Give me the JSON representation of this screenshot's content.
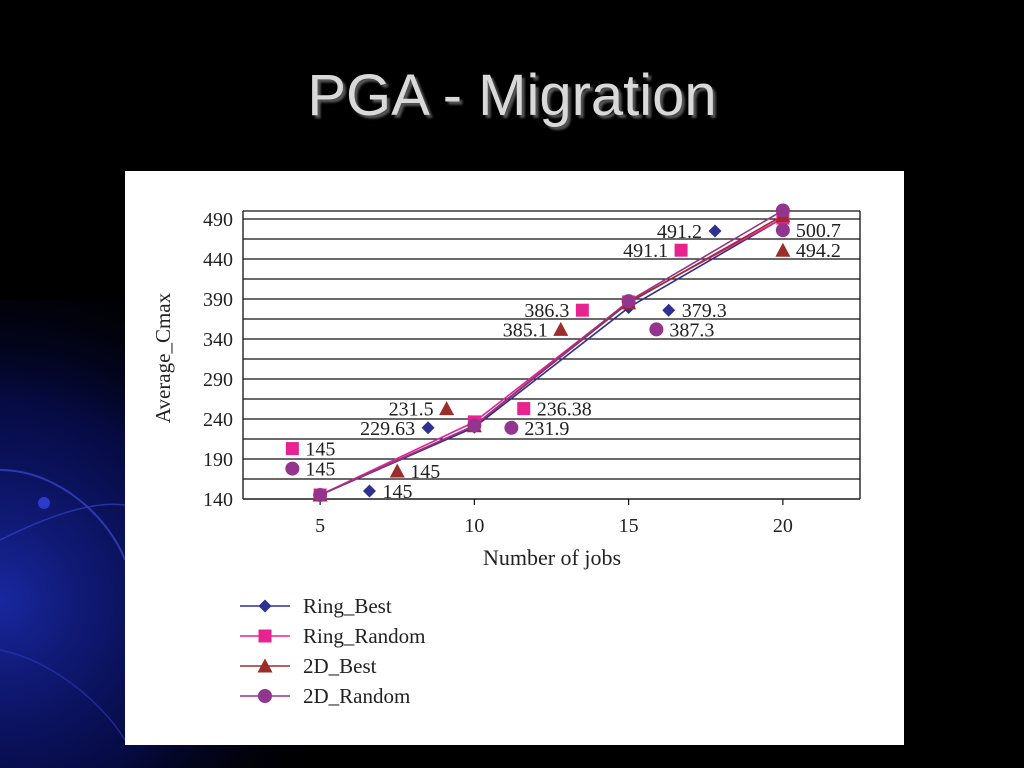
{
  "slide": {
    "title": "PGA - Migration"
  },
  "chart_data": {
    "type": "line",
    "title": "",
    "xlabel": "Number of jobs",
    "ylabel": "Average_Cmax",
    "x_ticks": [
      5,
      10,
      15,
      20
    ],
    "y_ticks": [
      140,
      190,
      240,
      290,
      340,
      390,
      440,
      490
    ],
    "xlim": [
      2.5,
      22.5
    ],
    "ylim": [
      140,
      500
    ],
    "grid": "horizontal",
    "legend_position": "bottom-left",
    "series": [
      {
        "name": "Ring_Best",
        "color": "#2e3192",
        "marker": "diamond",
        "x": [
          5,
          10,
          15,
          20
        ],
        "values": [
          145,
          229.63,
          379.3,
          491.2
        ]
      },
      {
        "name": "Ring_Random",
        "color": "#e8238f",
        "marker": "square",
        "x": [
          5,
          10,
          15,
          20
        ],
        "values": [
          145,
          236.38,
          386.3,
          491.1
        ]
      },
      {
        "name": "2D_Best",
        "color": "#9b2d2a",
        "marker": "triangle",
        "x": [
          5,
          10,
          15,
          20
        ],
        "values": [
          145,
          231.5,
          385.1,
          494.2
        ]
      },
      {
        "name": "2D_Random",
        "color": "#93358e",
        "marker": "circle",
        "x": [
          5,
          10,
          15,
          20
        ],
        "values": [
          145,
          231.9,
          387.3,
          500.7
        ]
      }
    ],
    "annotations": [
      {
        "series": 0,
        "x": 6.6,
        "y": 150,
        "label": "145",
        "side": "right"
      },
      {
        "series": 1,
        "x": 4.1,
        "y": 203,
        "label": "145",
        "side": "right"
      },
      {
        "series": 2,
        "x": 7.5,
        "y": 175,
        "label": "145",
        "side": "right"
      },
      {
        "series": 3,
        "x": 4.1,
        "y": 178,
        "label": "145",
        "side": "right"
      },
      {
        "series": 0,
        "x": 8.5,
        "y": 229,
        "label": "229.63",
        "side": "left"
      },
      {
        "series": 1,
        "x": 11.6,
        "y": 253,
        "label": "236.38",
        "side": "right"
      },
      {
        "series": 2,
        "x": 9.1,
        "y": 253,
        "label": "231.5",
        "side": "left"
      },
      {
        "series": 3,
        "x": 11.2,
        "y": 229,
        "label": "231.9",
        "side": "right"
      },
      {
        "series": 0,
        "x": 16.3,
        "y": 376,
        "label": "379.3",
        "side": "right"
      },
      {
        "series": 1,
        "x": 13.5,
        "y": 376,
        "label": "386.3",
        "side": "left"
      },
      {
        "series": 2,
        "x": 12.8,
        "y": 352,
        "label": "385.1",
        "side": "left"
      },
      {
        "series": 3,
        "x": 15.9,
        "y": 352,
        "label": "387.3",
        "side": "right"
      },
      {
        "series": 0,
        "x": 17.8,
        "y": 475,
        "label": "491.2",
        "side": "left"
      },
      {
        "series": 1,
        "x": 16.7,
        "y": 451,
        "label": "491.1",
        "side": "left"
      },
      {
        "series": 2,
        "x": 20.0,
        "y": 451,
        "label": "494.2",
        "side": "right"
      },
      {
        "series": 3,
        "x": 20.0,
        "y": 476,
        "label": "500.7",
        "side": "right"
      }
    ]
  }
}
